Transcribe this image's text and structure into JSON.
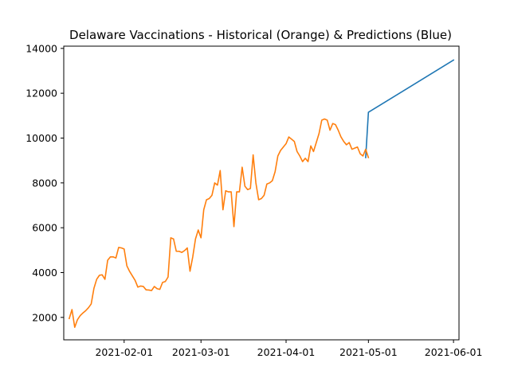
{
  "chart_data": {
    "type": "line",
    "title": "Delaware Vaccinations - Historical (Orange) & Predictions (Blue)",
    "xlabel": "",
    "ylabel": "",
    "x_axis_type": "date",
    "xlim": [
      "2021-01-10",
      "2021-06-03"
    ],
    "ylim": [
      1000,
      14100
    ],
    "xticks": [
      "2021-02-01",
      "2021-03-01",
      "2021-04-01",
      "2021-05-01",
      "2021-06-01"
    ],
    "yticks": [
      2000,
      4000,
      6000,
      8000,
      10000,
      12000,
      14000
    ],
    "grid": false,
    "legend": false,
    "series": [
      {
        "color": "#1f77b4",
        "points": [
          [
            "2021-04-30",
            9130
          ],
          [
            "2021-05-01",
            11150
          ],
          [
            "2021-06-01",
            13480
          ]
        ]
      },
      {
        "color": "#ff7f0e",
        "points": [
          [
            "2021-01-12",
            1950
          ],
          [
            "2021-01-13",
            2350
          ],
          [
            "2021-01-14",
            1560
          ],
          [
            "2021-01-15",
            1900
          ],
          [
            "2021-01-16",
            2080
          ],
          [
            "2021-01-17",
            2200
          ],
          [
            "2021-01-18",
            2300
          ],
          [
            "2021-01-19",
            2430
          ],
          [
            "2021-01-20",
            2600
          ],
          [
            "2021-01-21",
            3300
          ],
          [
            "2021-01-22",
            3700
          ],
          [
            "2021-01-23",
            3880
          ],
          [
            "2021-01-24",
            3900
          ],
          [
            "2021-01-25",
            3700
          ],
          [
            "2021-01-26",
            4550
          ],
          [
            "2021-01-27",
            4700
          ],
          [
            "2021-01-28",
            4700
          ],
          [
            "2021-01-29",
            4650
          ],
          [
            "2021-01-30",
            5120
          ],
          [
            "2021-01-31",
            5100
          ],
          [
            "2021-02-01",
            5050
          ],
          [
            "2021-02-02",
            4300
          ],
          [
            "2021-02-03",
            4050
          ],
          [
            "2021-02-04",
            3850
          ],
          [
            "2021-02-05",
            3650
          ],
          [
            "2021-02-06",
            3350
          ],
          [
            "2021-02-07",
            3400
          ],
          [
            "2021-02-08",
            3380
          ],
          [
            "2021-02-09",
            3230
          ],
          [
            "2021-02-10",
            3220
          ],
          [
            "2021-02-11",
            3200
          ],
          [
            "2021-02-12",
            3380
          ],
          [
            "2021-02-13",
            3280
          ],
          [
            "2021-02-14",
            3250
          ],
          [
            "2021-02-15",
            3560
          ],
          [
            "2021-02-16",
            3600
          ],
          [
            "2021-02-17",
            3800
          ],
          [
            "2021-02-18",
            5550
          ],
          [
            "2021-02-19",
            5500
          ],
          [
            "2021-02-20",
            4950
          ],
          [
            "2021-02-21",
            4950
          ],
          [
            "2021-02-22",
            4900
          ],
          [
            "2021-02-23",
            4980
          ],
          [
            "2021-02-24",
            5100
          ],
          [
            "2021-02-25",
            4060
          ],
          [
            "2021-02-26",
            4700
          ],
          [
            "2021-02-27",
            5500
          ],
          [
            "2021-02-28",
            5900
          ],
          [
            "2021-03-01",
            5550
          ],
          [
            "2021-03-02",
            6800
          ],
          [
            "2021-03-03",
            7250
          ],
          [
            "2021-03-04",
            7300
          ],
          [
            "2021-03-05",
            7450
          ],
          [
            "2021-03-06",
            8000
          ],
          [
            "2021-03-07",
            7900
          ],
          [
            "2021-03-08",
            8550
          ],
          [
            "2021-03-09",
            6800
          ],
          [
            "2021-03-10",
            7650
          ],
          [
            "2021-03-11",
            7600
          ],
          [
            "2021-03-12",
            7600
          ],
          [
            "2021-03-13",
            6050
          ],
          [
            "2021-03-14",
            7600
          ],
          [
            "2021-03-15",
            7600
          ],
          [
            "2021-03-16",
            8700
          ],
          [
            "2021-03-17",
            7850
          ],
          [
            "2021-03-18",
            7700
          ],
          [
            "2021-03-19",
            7750
          ],
          [
            "2021-03-20",
            9250
          ],
          [
            "2021-03-21",
            8000
          ],
          [
            "2021-03-22",
            7250
          ],
          [
            "2021-03-23",
            7300
          ],
          [
            "2021-03-24",
            7450
          ],
          [
            "2021-03-25",
            7950
          ],
          [
            "2021-03-26",
            8000
          ],
          [
            "2021-03-27",
            8100
          ],
          [
            "2021-03-28",
            8500
          ],
          [
            "2021-03-29",
            9200
          ],
          [
            "2021-03-30",
            9450
          ],
          [
            "2021-03-31",
            9600
          ],
          [
            "2021-04-01",
            9750
          ],
          [
            "2021-04-02",
            10050
          ],
          [
            "2021-04-03",
            9950
          ],
          [
            "2021-04-04",
            9850
          ],
          [
            "2021-04-05",
            9400
          ],
          [
            "2021-04-06",
            9200
          ],
          [
            "2021-04-07",
            8950
          ],
          [
            "2021-04-08",
            9100
          ],
          [
            "2021-04-09",
            8950
          ],
          [
            "2021-04-10",
            9650
          ],
          [
            "2021-04-11",
            9400
          ],
          [
            "2021-04-12",
            9800
          ],
          [
            "2021-04-13",
            10200
          ],
          [
            "2021-04-14",
            10800
          ],
          [
            "2021-04-15",
            10850
          ],
          [
            "2021-04-16",
            10800
          ],
          [
            "2021-04-17",
            10350
          ],
          [
            "2021-04-18",
            10650
          ],
          [
            "2021-04-19",
            10600
          ],
          [
            "2021-04-20",
            10350
          ],
          [
            "2021-04-21",
            10050
          ],
          [
            "2021-04-22",
            9850
          ],
          [
            "2021-04-23",
            9700
          ],
          [
            "2021-04-24",
            9800
          ],
          [
            "2021-04-25",
            9500
          ],
          [
            "2021-04-26",
            9550
          ],
          [
            "2021-04-27",
            9600
          ],
          [
            "2021-04-28",
            9300
          ],
          [
            "2021-04-29",
            9200
          ],
          [
            "2021-04-30",
            9500
          ],
          [
            "2021-05-01",
            9130
          ]
        ]
      }
    ]
  }
}
